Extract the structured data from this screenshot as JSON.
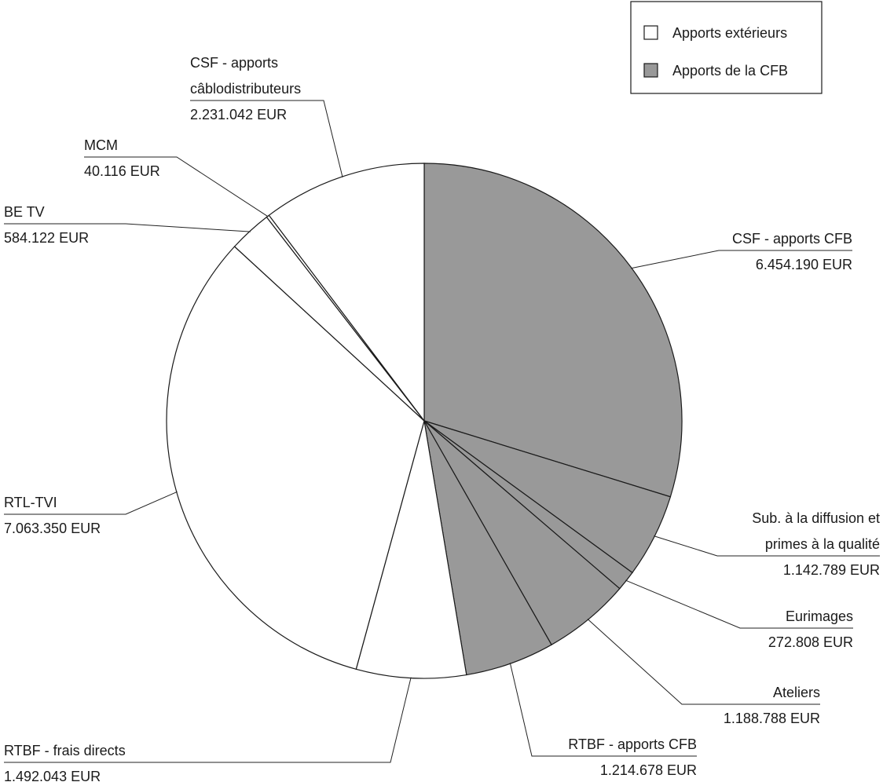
{
  "chart_data": {
    "type": "pie",
    "title": "",
    "legend": {
      "placement": "top-right",
      "entries": [
        {
          "label": "Apports extérieurs",
          "color": "#ffffff"
        },
        {
          "label": "Apports de la CFB",
          "color": "#999999"
        }
      ]
    },
    "slices": [
      {
        "lines": [
          "CSF - apports CFB"
        ],
        "value_label": "6.454.190 EUR",
        "value": 6454190,
        "group": "Apports de la CFB"
      },
      {
        "lines": [
          "Sub. à la diffusion et",
          "primes à la qualité"
        ],
        "value_label": "1.142.789 EUR",
        "value": 1142789,
        "group": "Apports de la CFB"
      },
      {
        "lines": [
          "Eurimages"
        ],
        "value_label": "272.808 EUR",
        "value": 272808,
        "group": "Apports de la CFB"
      },
      {
        "lines": [
          "Ateliers"
        ],
        "value_label": "1.188.788 EUR",
        "value": 1188788,
        "group": "Apports de la CFB"
      },
      {
        "lines": [
          "RTBF - apports CFB"
        ],
        "value_label": "1.214.678 EUR",
        "value": 1214678,
        "group": "Apports de la CFB"
      },
      {
        "lines": [
          "RTBF - frais directs"
        ],
        "value_label": "1.492.043 EUR",
        "value": 1492043,
        "group": "Apports extérieurs"
      },
      {
        "lines": [
          "RTL-TVI"
        ],
        "value_label": "7.063.350 EUR",
        "value": 7063350,
        "group": "Apports extérieurs"
      },
      {
        "lines": [
          "BE TV"
        ],
        "value_label": "584.122 EUR",
        "value": 584122,
        "group": "Apports extérieurs"
      },
      {
        "lines": [
          "MCM"
        ],
        "value_label": "40.116 EUR",
        "value": 40116,
        "group": "Apports extérieurs"
      },
      {
        "lines": [
          "CSF - apports",
          "câblodistributeurs"
        ],
        "value_label": "2.231.042 EUR",
        "value": 2231042,
        "group": "Apports extérieurs"
      }
    ]
  }
}
